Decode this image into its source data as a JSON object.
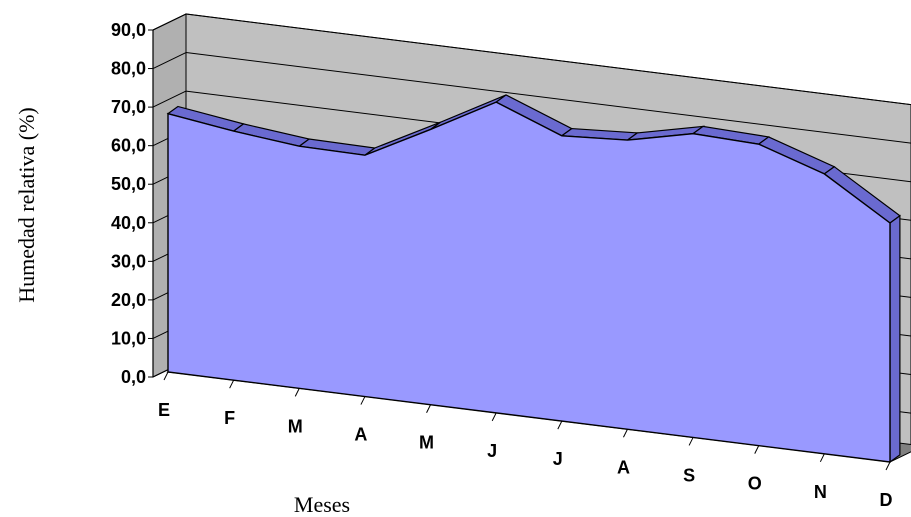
{
  "chart_data": {
    "type": "area",
    "title": "",
    "xlabel": "Meses",
    "ylabel": "Humedad relativa (%)",
    "categories": [
      "E",
      "F",
      "M",
      "A",
      "M",
      "J",
      "J",
      "A",
      "S",
      "O",
      "N",
      "D"
    ],
    "values": [
      67.0,
      64.6,
      62.8,
      62.6,
      71.4,
      80.6,
      74.0,
      75.0,
      78.8,
      78.2,
      72.6,
      62.0
    ],
    "ylim": [
      0,
      90
    ],
    "yticks": [
      "0,0",
      "10,0",
      "20,0",
      "30,0",
      "40,0",
      "50,0",
      "60,0",
      "70,0",
      "80,0",
      "90,0"
    ],
    "grid": true,
    "three_d": true,
    "colors": {
      "area_fill": "#9999ff",
      "area_top": "#6a6ad0",
      "area_outline": "#000000",
      "wall": "#c0c0c0",
      "floor": "#808080"
    }
  }
}
